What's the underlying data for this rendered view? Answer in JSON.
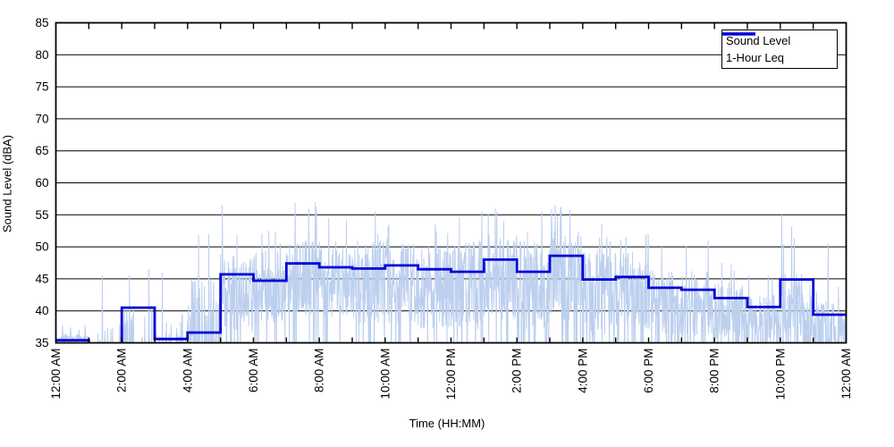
{
  "figure": {
    "background": "#FFFFFF",
    "plot_border_color": "#000000",
    "gridline_color": "#000000"
  },
  "y_axis": {
    "label": "Sound Level (dBA)",
    "min": 35,
    "max": 85,
    "tick_labels": [
      "85",
      "80",
      "75",
      "70",
      "65",
      "60",
      "55",
      "50",
      "45",
      "40",
      "35"
    ]
  },
  "x_axis": {
    "label": "Time (HH:MM)",
    "tick_labels": [
      "12:00 AM",
      "2:00 AM",
      "4:00 AM",
      "6:00 AM",
      "8:00 AM",
      "10:00 AM",
      "12:00 PM",
      "2:00 PM",
      "4:00 PM",
      "6:00 PM",
      "8:00 PM",
      "10:00 PM",
      "12:00 AM"
    ],
    "labeled_tick_every_hours": 2,
    "minor_tick_every_hours": 1
  },
  "legend": {
    "items": [
      {
        "label": "Sound Level",
        "color": "#BCCFEE",
        "line_weight": 2
      },
      {
        "label": "1-Hour Leq",
        "color": "#0000D6",
        "line_weight": 3.5
      }
    ]
  },
  "chart_data": {
    "type": "line",
    "title": "",
    "xlabel": "Time (HH:MM)",
    "ylabel": "Sound Level (dBA)",
    "x_range_hours": [
      0,
      24
    ],
    "ylim": [
      35,
      85
    ],
    "grid": "horizontal-solid-every-5dB",
    "legend_position": "top-right-inside",
    "series": [
      {
        "name": "1-Hour Leq",
        "kind": "hourly_step",
        "hours": [
          0,
          1,
          2,
          3,
          4,
          5,
          6,
          7,
          8,
          9,
          10,
          11,
          12,
          13,
          14,
          15,
          16,
          17,
          18,
          19,
          20,
          21,
          22,
          23
        ],
        "values": [
          35.4,
          34.7,
          40.5,
          35.6,
          36.6,
          45.7,
          44.7,
          47.4,
          46.8,
          46.6,
          47.1,
          46.5,
          46.1,
          48.0,
          46.1,
          48.6,
          44.9,
          45.3,
          43.6,
          43.3,
          42.0,
          40.6,
          44.9,
          39.4
        ],
        "note_hour_1": "below 35 dBA (clipped by axis)"
      },
      {
        "name": "Sound Level",
        "kind": "noisy_fast_trace_hour_envelope",
        "hour_envelope": [
          {
            "hour": 0,
            "low": 35.0,
            "high": 36.4,
            "spike_max": 38.6,
            "active_fraction": 0.78
          },
          {
            "hour": 1,
            "low": 35.0,
            "high": 38.0,
            "spike_max": 45.5,
            "active_fraction": 0.12
          },
          {
            "hour": 2,
            "low": 35.0,
            "high": 41.0,
            "spike_max": 46.5,
            "active_fraction": 0.3
          },
          {
            "hour": 3,
            "low": 35.0,
            "high": 40.0,
            "spike_max": 46.0,
            "active_fraction": 0.22
          },
          {
            "hour": 4,
            "low": 35.0,
            "high": 45.0,
            "spike_max": 52.0,
            "active_fraction": 0.38
          },
          {
            "hour": 5,
            "low": 36.5,
            "high": 49.0,
            "spike_max": 56.5,
            "active_fraction": 0.93
          },
          {
            "hour": 6,
            "low": 38.0,
            "high": 49.5,
            "spike_max": 52.5,
            "active_fraction": 0.97
          },
          {
            "hour": 7,
            "low": 39.0,
            "high": 51.0,
            "spike_max": 57.0,
            "active_fraction": 0.98
          },
          {
            "hour": 8,
            "low": 39.0,
            "high": 51.0,
            "spike_max": 54.5,
            "active_fraction": 0.97
          },
          {
            "hour": 9,
            "low": 38.0,
            "high": 51.0,
            "spike_max": 55.5,
            "active_fraction": 0.95
          },
          {
            "hour": 10,
            "low": 38.0,
            "high": 50.5,
            "spike_max": 53.5,
            "active_fraction": 0.96
          },
          {
            "hour": 11,
            "low": 37.0,
            "high": 50.5,
            "spike_max": 53.5,
            "active_fraction": 0.95
          },
          {
            "hour": 12,
            "low": 37.0,
            "high": 51.0,
            "spike_max": 55.5,
            "active_fraction": 0.95
          },
          {
            "hour": 13,
            "low": 38.5,
            "high": 52.0,
            "spike_max": 56.0,
            "active_fraction": 0.96
          },
          {
            "hour": 14,
            "low": 37.0,
            "high": 51.0,
            "spike_max": 55.5,
            "active_fraction": 0.95
          },
          {
            "hour": 15,
            "low": 38.5,
            "high": 52.5,
            "spike_max": 56.5,
            "active_fraction": 0.96
          },
          {
            "hour": 16,
            "low": 36.0,
            "high": 49.5,
            "spike_max": 53.5,
            "active_fraction": 0.93
          },
          {
            "hour": 17,
            "low": 36.5,
            "high": 49.5,
            "spike_max": 52.0,
            "active_fraction": 0.93
          },
          {
            "hour": 18,
            "low": 36.0,
            "high": 46.5,
            "spike_max": 50.0,
            "active_fraction": 0.92
          },
          {
            "hour": 19,
            "low": 36.0,
            "high": 46.5,
            "spike_max": 51.0,
            "active_fraction": 0.92
          },
          {
            "hour": 20,
            "low": 35.5,
            "high": 44.5,
            "spike_max": 47.5,
            "active_fraction": 0.9
          },
          {
            "hour": 21,
            "low": 35.3,
            "high": 42.5,
            "spike_max": 45.5,
            "active_fraction": 0.85
          },
          {
            "hour": 22,
            "low": 35.5,
            "high": 46.0,
            "spike_max": 55.0,
            "active_fraction": 0.85
          },
          {
            "hour": 23,
            "low": 35.0,
            "high": 41.5,
            "spike_max": 50.5,
            "active_fraction": 0.7
          }
        ],
        "render_seed": 42,
        "samples_per_hour": 90
      }
    ]
  }
}
